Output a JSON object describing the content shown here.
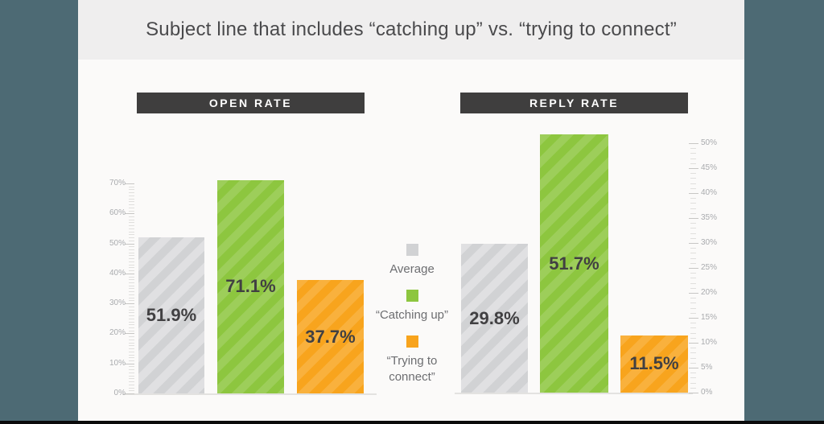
{
  "title": {
    "text": "Subject line that includes “catching up” vs. “trying to connect”"
  },
  "colors": {
    "frame": "#4d6a74",
    "bottom_bar": "#0b0b0b",
    "title_band": "#efeeee",
    "canvas": "#fbfaf9",
    "badge_background": "#3f3e3e",
    "badge_text": "#ffffff",
    "value_label": "#414042",
    "axis_label": "#a9abae",
    "legend_text": "#6d6e71",
    "average_gray": "#d1d2d4",
    "catching_up_green": "#8dc63f",
    "trying_to_connect_orange": "#f8a41d"
  },
  "legend": {
    "items": [
      {
        "name": "average",
        "label": "Average",
        "color": "#d1d2d4"
      },
      {
        "name": "catching-up",
        "label": "“Catching up”",
        "color": "#8dc63f"
      },
      {
        "name": "trying-to-connect",
        "label": "“Trying to connect”",
        "color": "#f8a41d"
      }
    ]
  },
  "chart_data": [
    {
      "type": "bar",
      "title": "OPEN RATE",
      "axis_side": "left",
      "categories": [
        "Average",
        "“Catching up”",
        "“Trying to connect”"
      ],
      "names": [
        "average",
        "catching-up",
        "trying-to-connect"
      ],
      "values": [
        51.9,
        71.1,
        37.7
      ],
      "value_labels": [
        "51.9%",
        "71.1%",
        "37.7%"
      ],
      "colors": [
        "#d1d2d4",
        "#8dc63f",
        "#f8a41d"
      ],
      "ylim": [
        0,
        70
      ],
      "ytick_step": 10,
      "minor_tick_step": 1,
      "ytick_labels": [
        "0%",
        "10%",
        "20%",
        "30%",
        "40%",
        "50%",
        "60%",
        "70%"
      ],
      "grid": false,
      "legend_position": "center-between-charts"
    },
    {
      "type": "bar",
      "title": "REPLY RATE",
      "axis_side": "right",
      "categories": [
        "Average",
        "“Catching up”",
        "“Trying to connect”"
      ],
      "names": [
        "average",
        "catching-up",
        "trying-to-connect"
      ],
      "values": [
        29.8,
        51.7,
        11.5
      ],
      "value_labels": [
        "29.8%",
        "51.7%",
        "11.5%"
      ],
      "colors": [
        "#d1d2d4",
        "#8dc63f",
        "#f8a41d"
      ],
      "ylim": [
        0,
        50
      ],
      "ytick_step": 5,
      "minor_tick_step": 1,
      "ytick_labels": [
        "0%",
        "5%",
        "10%",
        "15%",
        "20%",
        "25%",
        "30%",
        "35%",
        "40%",
        "45%",
        "50%"
      ],
      "grid": false,
      "legend_position": "center-between-charts"
    }
  ]
}
